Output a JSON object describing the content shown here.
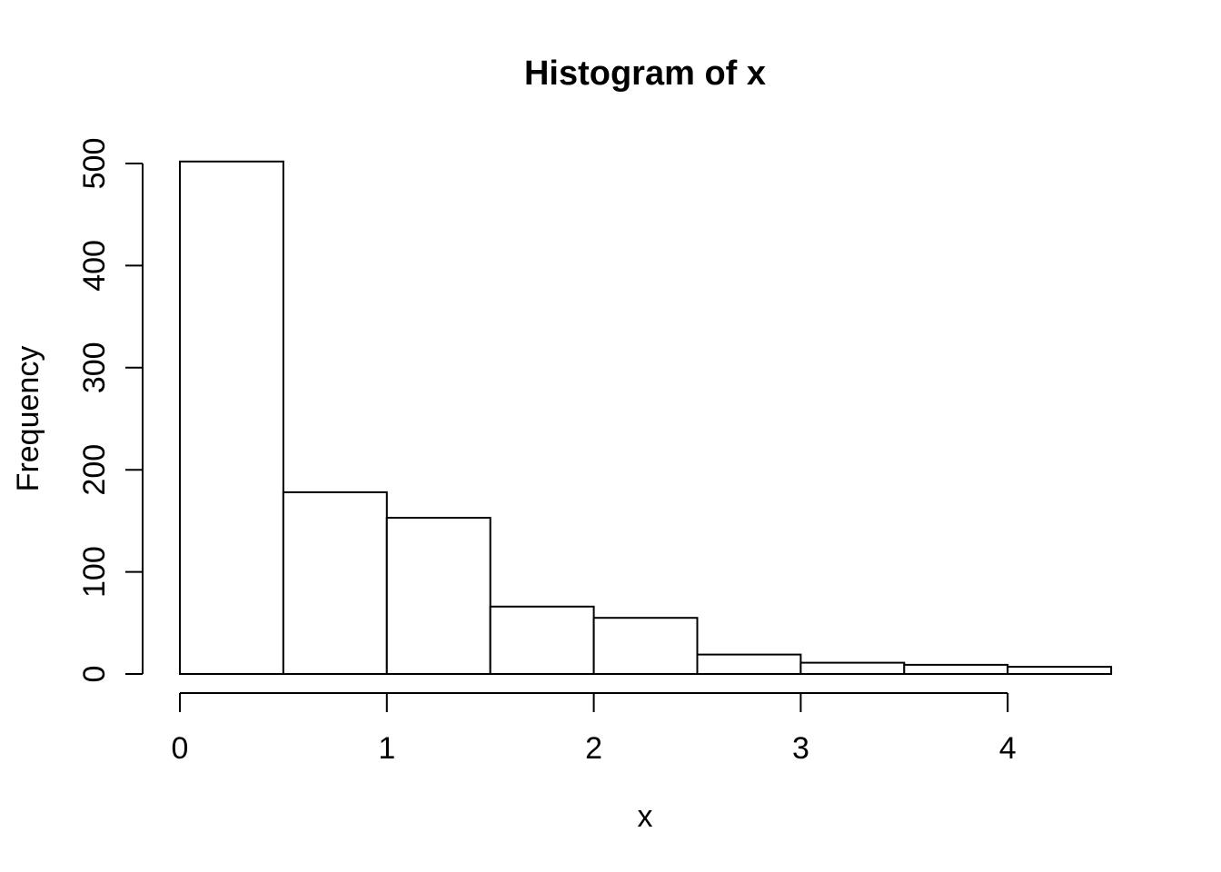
{
  "figure": {
    "background": "#ffffff",
    "foreground": "#000000"
  },
  "chart_data": {
    "type": "bar",
    "subtype": "histogram",
    "title": "Histogram of x",
    "xlabel": "x",
    "ylabel": "Frequency",
    "bin_breaks": [
      0,
      0.5,
      1,
      1.5,
      2,
      2.5,
      3,
      3.5,
      4,
      4.5
    ],
    "bin_counts": [
      502,
      178,
      153,
      66,
      55,
      19,
      11,
      9,
      7
    ],
    "x_tick_labels": [
      "0",
      "1",
      "2",
      "3",
      "4"
    ],
    "x_tick_values": [
      0,
      1,
      2,
      3,
      4
    ],
    "y_tick_labels": [
      "0",
      "100",
      "200",
      "300",
      "400",
      "500"
    ],
    "y_tick_values": [
      0,
      100,
      200,
      300,
      400,
      500
    ],
    "xlim": [
      0,
      4.5
    ],
    "ylim": [
      0,
      500
    ],
    "bar_fill": "#ffffff",
    "bar_stroke": "#000000",
    "axis_color": "#000000",
    "grid": "off",
    "legend": "none"
  }
}
